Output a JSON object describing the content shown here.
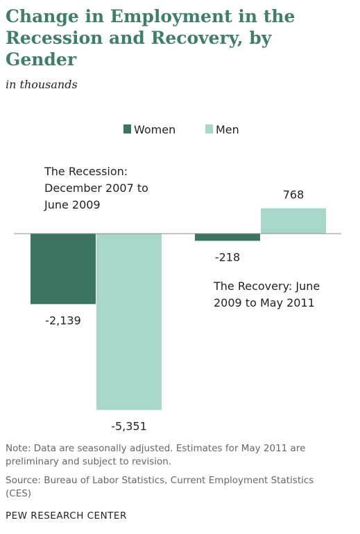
{
  "chart_data": {
    "type": "bar",
    "title": "Change in Employment in the Recession and Recovery, by Gender",
    "subtitle": "in thousands",
    "categories": [
      "The Recession: December 2007 to June 2009",
      "The Recovery: June 2009 to May 2011"
    ],
    "series": [
      {
        "name": "Women",
        "color": "#3b7562",
        "values": [
          -2139,
          -218
        ],
        "value_labels": [
          "-2,139",
          "-218"
        ]
      },
      {
        "name": "Men",
        "color": "#a9d6ca",
        "values": [
          -5351,
          768
        ],
        "value_labels": [
          "-5,351",
          "768"
        ]
      }
    ],
    "note": "Note: Data are seasonally adjusted. Estimates for May 2011 are preliminary and subject to revision.",
    "source": "Source: Bureau of Labor Statistics, Current Employment Statistics (CES)",
    "credit": "PEW RESEARCH CENTER"
  }
}
